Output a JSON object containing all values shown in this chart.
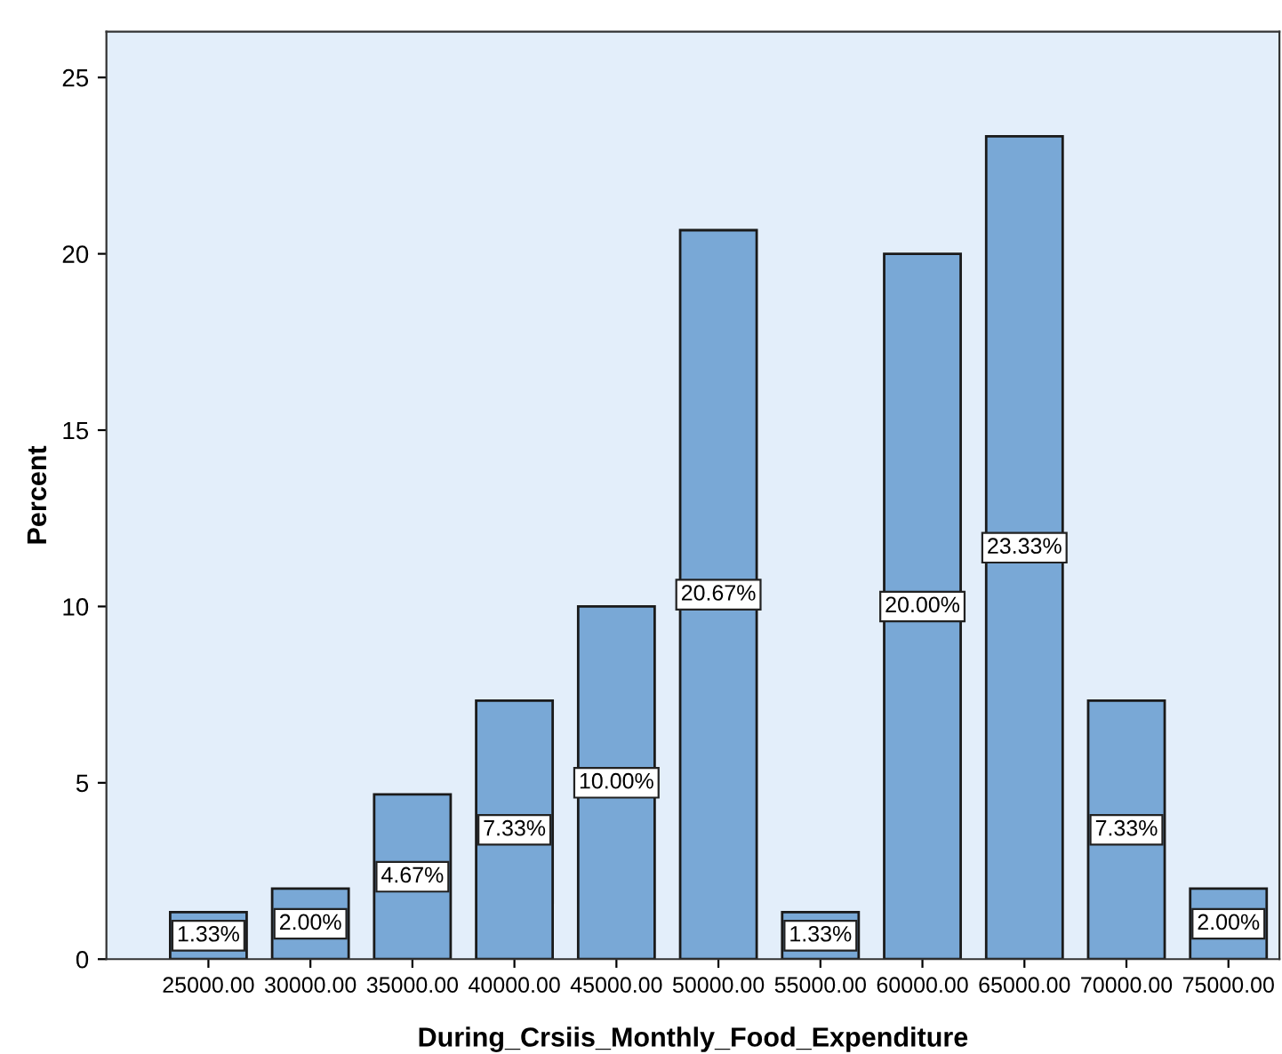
{
  "chart_data": {
    "type": "bar",
    "xlabel": "During_Crsiis_Monthly_Food_Expenditure",
    "ylabel": "Percent",
    "categories": [
      "25000.00",
      "30000.00",
      "35000.00",
      "40000.00",
      "45000.00",
      "50000.00",
      "55000.00",
      "60000.00",
      "65000.00",
      "70000.00",
      "75000.00"
    ],
    "values": [
      1.33,
      2.0,
      4.67,
      7.33,
      10.0,
      20.67,
      1.33,
      20.0,
      23.33,
      7.33,
      2.0
    ],
    "value_labels": [
      "1.33%",
      "2.00%",
      "4.67%",
      "7.33%",
      "10.00%",
      "20.67%",
      "1.33%",
      "20.00%",
      "23.33%",
      "7.33%",
      "2.00%"
    ],
    "color": "#79a8d6",
    "ylim": [
      0,
      26.3
    ],
    "yticks": [
      0,
      5,
      10,
      15,
      20,
      25
    ],
    "grid": false
  }
}
